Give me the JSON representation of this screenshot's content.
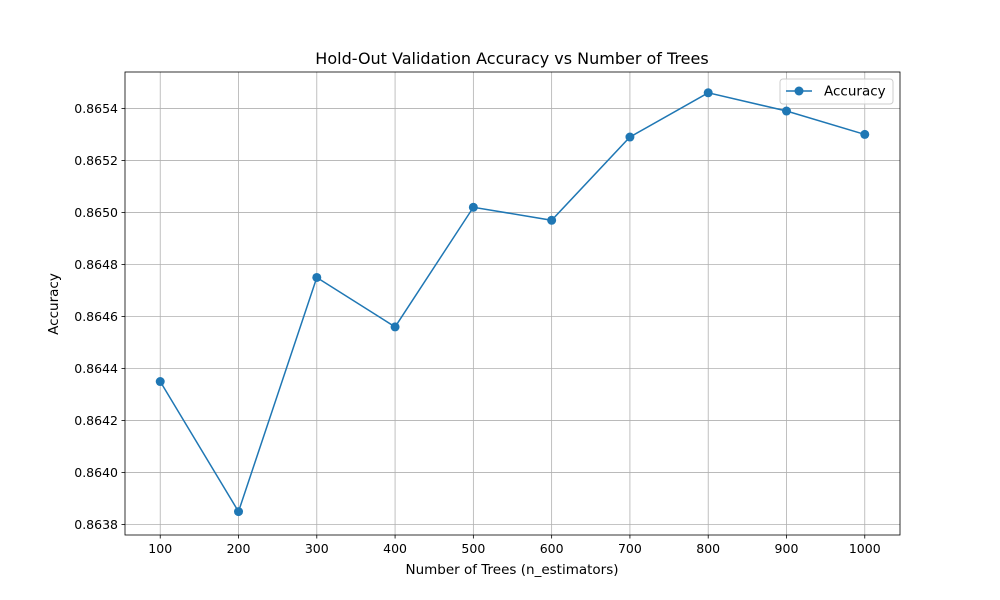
{
  "chart_data": {
    "type": "line",
    "title": "Hold-Out Validation Accuracy vs Number of Trees",
    "xlabel": "Number of Trees (n_estimators)",
    "ylabel": "Accuracy",
    "x": [
      100,
      200,
      300,
      400,
      500,
      600,
      700,
      800,
      900,
      1000
    ],
    "x_ticks": [
      "100",
      "200",
      "300",
      "400",
      "500",
      "600",
      "700",
      "800",
      "900",
      "1000"
    ],
    "y_ticks": [
      "0.8638",
      "0.8640",
      "0.8642",
      "0.8644",
      "0.8646",
      "0.8648",
      "0.8650",
      "0.8652",
      "0.8654"
    ],
    "y_tick_values": [
      0.8638,
      0.864,
      0.8642,
      0.8644,
      0.8646,
      0.8648,
      0.865,
      0.8652,
      0.8654
    ],
    "xlim": [
      55,
      1045
    ],
    "ylim": [
      0.86376,
      0.86554
    ],
    "grid": true,
    "legend": "upper-right",
    "series": [
      {
        "name": "Accuracy",
        "color": "#1f77b4",
        "marker": "circle",
        "values": [
          0.86435,
          0.86385,
          0.86475,
          0.86456,
          0.86502,
          0.86497,
          0.86529,
          0.86546,
          0.86539,
          0.8653
        ]
      }
    ]
  }
}
